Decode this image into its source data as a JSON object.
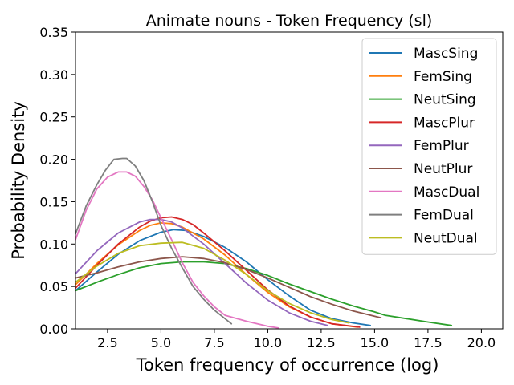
{
  "chart_data": {
    "type": "line",
    "title": "Animate nouns - Token Frequency (sl)",
    "xlabel": "Token frequency of occurrence (log)",
    "ylabel": "Probability Density",
    "xlim": [
      1.0,
      21.0
    ],
    "ylim": [
      0.0,
      0.35
    ],
    "xticks": [
      2.5,
      5.0,
      7.5,
      10.0,
      12.5,
      15.0,
      17.5,
      20.0
    ],
    "xtick_labels": [
      "2.5",
      "5.0",
      "7.5",
      "10.0",
      "12.5",
      "15.0",
      "17.5",
      "20.0"
    ],
    "yticks": [
      0.0,
      0.05,
      0.1,
      0.15,
      0.2,
      0.25,
      0.3,
      0.35
    ],
    "ytick_labels": [
      "0.00",
      "0.05",
      "0.10",
      "0.15",
      "0.20",
      "0.25",
      "0.30",
      "0.35"
    ],
    "grid": false,
    "legend_position": "top-right",
    "series": [
      {
        "name": "MascSing",
        "color": "#1f77b4",
        "x": [
          1.0,
          2.0,
          3.0,
          4.0,
          5.0,
          5.6,
          6.2,
          7.0,
          8.0,
          9.0,
          10.0,
          11.0,
          12.0,
          13.0,
          14.0,
          14.8
        ],
        "y": [
          0.045,
          0.067,
          0.088,
          0.104,
          0.114,
          0.117,
          0.116,
          0.109,
          0.096,
          0.079,
          0.058,
          0.039,
          0.022,
          0.012,
          0.007,
          0.004
        ]
      },
      {
        "name": "FemSing",
        "color": "#ff7f0e",
        "x": [
          1.0,
          2.0,
          3.0,
          4.0,
          4.5,
          5.0,
          5.5,
          6.0,
          7.0,
          8.0,
          9.0,
          10.0,
          11.0,
          12.0,
          13.0,
          14.2
        ],
        "y": [
          0.052,
          0.077,
          0.099,
          0.116,
          0.122,
          0.125,
          0.124,
          0.12,
          0.106,
          0.087,
          0.064,
          0.043,
          0.026,
          0.014,
          0.006,
          0.002
        ]
      },
      {
        "name": "NeutSing",
        "color": "#2ca02c",
        "x": [
          1.0,
          2.0,
          3.0,
          4.0,
          5.0,
          6.0,
          7.0,
          8.0,
          9.0,
          10.0,
          11.0,
          12.0,
          13.0,
          14.0,
          15.0,
          15.5,
          16.5,
          17.5,
          18.6
        ],
        "y": [
          0.045,
          0.055,
          0.064,
          0.072,
          0.077,
          0.079,
          0.079,
          0.077,
          0.071,
          0.063,
          0.053,
          0.044,
          0.035,
          0.027,
          0.02,
          0.016,
          0.012,
          0.008,
          0.004
        ]
      },
      {
        "name": "MascPlur",
        "color": "#d62728",
        "x": [
          1.0,
          2.0,
          3.0,
          4.0,
          4.5,
          5.0,
          5.5,
          6.0,
          6.5,
          7.0,
          8.0,
          9.0,
          10.0,
          11.0,
          12.0,
          13.0,
          14.3
        ],
        "y": [
          0.048,
          0.075,
          0.1,
          0.12,
          0.127,
          0.131,
          0.132,
          0.129,
          0.123,
          0.113,
          0.092,
          0.069,
          0.046,
          0.027,
          0.014,
          0.006,
          0.002
        ]
      },
      {
        "name": "FemPlur",
        "color": "#9467bd",
        "x": [
          1.0,
          2.0,
          3.0,
          4.0,
          4.5,
          5.0,
          5.5,
          6.0,
          7.0,
          8.0,
          9.0,
          10.0,
          11.0,
          12.0,
          12.8
        ],
        "y": [
          0.065,
          0.092,
          0.113,
          0.126,
          0.129,
          0.129,
          0.126,
          0.119,
          0.1,
          0.077,
          0.054,
          0.034,
          0.019,
          0.009,
          0.004
        ]
      },
      {
        "name": "NeutPlur",
        "color": "#8c564b",
        "x": [
          1.0,
          2.0,
          3.0,
          4.0,
          5.0,
          6.0,
          7.0,
          8.0,
          9.0,
          10.0,
          11.0,
          12.0,
          13.0,
          14.0,
          15.3
        ],
        "y": [
          0.06,
          0.066,
          0.073,
          0.079,
          0.083,
          0.085,
          0.083,
          0.078,
          0.07,
          0.06,
          0.049,
          0.038,
          0.029,
          0.021,
          0.013
        ]
      },
      {
        "name": "MascDual",
        "color": "#e377c2",
        "x": [
          1.0,
          1.5,
          2.0,
          2.5,
          3.0,
          3.4,
          3.8,
          4.2,
          4.6,
          5.0,
          5.5,
          6.0,
          6.5,
          7.0,
          7.5,
          8.0,
          9.0,
          10.0,
          10.5
        ],
        "y": [
          0.105,
          0.14,
          0.165,
          0.179,
          0.185,
          0.185,
          0.18,
          0.168,
          0.152,
          0.131,
          0.105,
          0.078,
          0.055,
          0.039,
          0.026,
          0.016,
          0.009,
          0.003,
          0.001
        ]
      },
      {
        "name": "FemDual",
        "color": "#7f7f7f",
        "x": [
          1.0,
          1.5,
          2.0,
          2.4,
          2.8,
          3.2,
          3.4,
          3.8,
          4.2,
          4.6,
          5.0,
          5.5,
          6.0,
          6.5,
          7.0,
          7.5,
          8.3
        ],
        "y": [
          0.112,
          0.145,
          0.17,
          0.187,
          0.2,
          0.201,
          0.201,
          0.192,
          0.175,
          0.15,
          0.122,
          0.095,
          0.072,
          0.05,
          0.035,
          0.022,
          0.006
        ]
      },
      {
        "name": "NeutDual",
        "color": "#bcbd22",
        "x": [
          1.0,
          2.0,
          3.0,
          4.0,
          5.0,
          6.0,
          7.0,
          8.0,
          9.0,
          10.0,
          11.0,
          12.0,
          13.0,
          13.8
        ],
        "y": [
          0.055,
          0.074,
          0.089,
          0.098,
          0.101,
          0.102,
          0.095,
          0.081,
          0.064,
          0.045,
          0.03,
          0.019,
          0.011,
          0.007
        ]
      }
    ]
  }
}
